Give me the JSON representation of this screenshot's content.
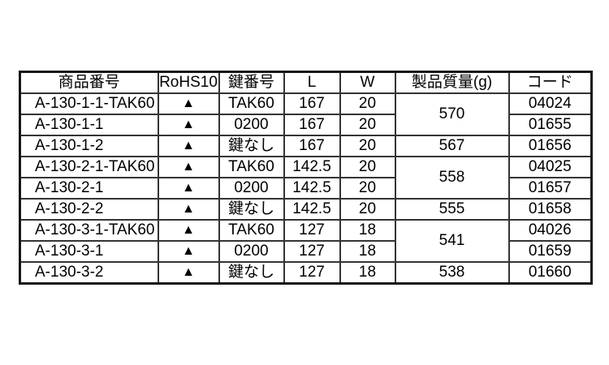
{
  "page": {
    "background_color": "#ffffff",
    "text_color": "#000000",
    "border_color": "#343434",
    "outer_border_color": "#161616"
  },
  "table": {
    "headers": {
      "product": "商品番号",
      "rohs": "RoHS10",
      "key": "鍵番号",
      "length": "L",
      "width": "W",
      "weight": "製品質量(g)",
      "code": "コード"
    },
    "rows": [
      {
        "product": "A-130-1-1-TAK60",
        "rohs": "▲",
        "key": "TAK60",
        "length": "167",
        "width": "20",
        "weight": "570",
        "code": "04024"
      },
      {
        "product": "A-130-1-1",
        "rohs": "▲",
        "key": "0200",
        "length": "167",
        "width": "20",
        "code": "01655"
      },
      {
        "product": "A-130-1-2",
        "rohs": "▲",
        "key": "鍵なし",
        "length": "167",
        "width": "20",
        "weight": "567",
        "code": "01656"
      },
      {
        "product": "A-130-2-1-TAK60",
        "rohs": "▲",
        "key": "TAK60",
        "length": "142.5",
        "width": "20",
        "weight": "558",
        "code": "04025"
      },
      {
        "product": "A-130-2-1",
        "rohs": "▲",
        "key": "0200",
        "length": "142.5",
        "width": "20",
        "code": "01657"
      },
      {
        "product": "A-130-2-2",
        "rohs": "▲",
        "key": "鍵なし",
        "length": "142.5",
        "width": "20",
        "weight": "555",
        "code": "01658"
      },
      {
        "product": "A-130-3-1-TAK60",
        "rohs": "▲",
        "key": "TAK60",
        "length": "127",
        "width": "18",
        "weight": "541",
        "code": "04026"
      },
      {
        "product": "A-130-3-1",
        "rohs": "▲",
        "key": "0200",
        "length": "127",
        "width": "18",
        "code": "01659"
      },
      {
        "product": "A-130-3-2",
        "rohs": "▲",
        "key": "鍵なし",
        "length": "127",
        "width": "18",
        "weight": "538",
        "code": "01660"
      }
    ]
  }
}
